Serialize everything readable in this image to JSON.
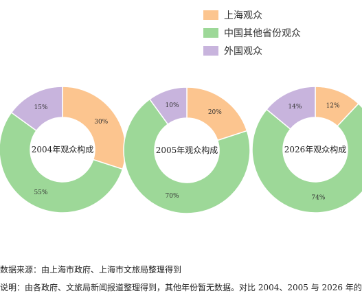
{
  "chart_data": {
    "type": "pie",
    "legend_position": "top-right",
    "series_names": [
      "上海观众",
      "中国其他省份观众",
      "外国观众"
    ],
    "colors": [
      "#fcc58f",
      "#9dd898",
      "#c8b4dd"
    ],
    "charts": [
      {
        "title": "2004年观众构成",
        "values": [
          30,
          55,
          15
        ],
        "labels": [
          "30%",
          "55%",
          "15%"
        ]
      },
      {
        "title": "2005年观众构成",
        "values": [
          20,
          70,
          10
        ],
        "labels": [
          "20%",
          "70%",
          "10%"
        ]
      },
      {
        "title": "2026年观众构成",
        "values": [
          12,
          74,
          14
        ],
        "labels": [
          "12%",
          "74%",
          "14%"
        ]
      }
    ]
  },
  "notes": {
    "source": "数据来源：由上海市政府、上海市文旅局整理得到",
    "description": "说明：由各政府、文旅局新闻报道整理得到，其他年份暂无数据。对比 2004、2005 与 2026 年的"
  }
}
